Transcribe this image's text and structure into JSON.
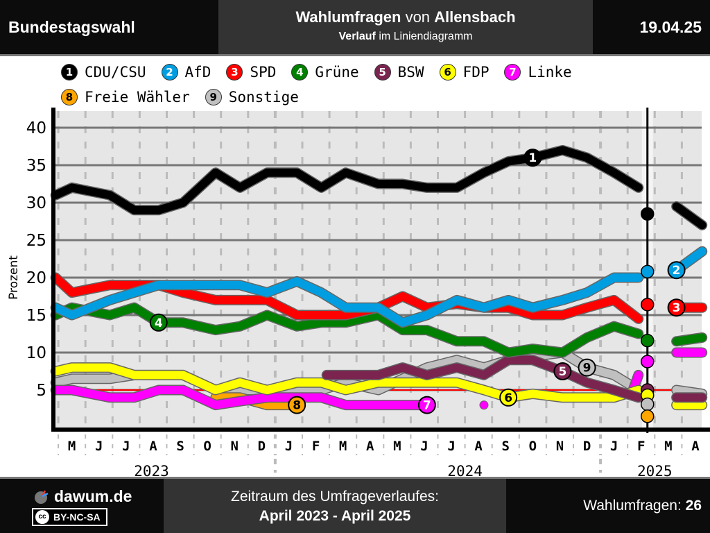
{
  "header": {
    "left": "Bundestagswahl",
    "title_bold1": "Wahlumfragen",
    "title_mid": " von ",
    "title_bold2": "Allensbach",
    "subtitle_bold": "Verlauf",
    "subtitle_rest": " im Liniendiagramm",
    "date": "19.04.25"
  },
  "footer": {
    "brand": "dawum.de",
    "license": "BY-NC-SA",
    "license_icon": "cc",
    "period_label": "Zeitraum des Umfrageverlaufes:",
    "period_value": "April 2023 - April 2025",
    "count_label": "Wahlumfragen: ",
    "count_value": "26"
  },
  "legend": [
    {
      "num": "1",
      "name": "CDU/CSU",
      "color": "#000000",
      "text": "#ffffff"
    },
    {
      "num": "2",
      "name": "AfD",
      "color": "#009ee0",
      "text": "#ffffff"
    },
    {
      "num": "3",
      "name": "SPD",
      "color": "#ff0000",
      "text": "#ffffff"
    },
    {
      "num": "4",
      "name": "Grüne",
      "color": "#008000",
      "text": "#ffffff"
    },
    {
      "num": "5",
      "name": "BSW",
      "color": "#7b2450",
      "text": "#ffffff"
    },
    {
      "num": "6",
      "name": "FDP",
      "color": "#ffff00",
      "text": "#000000"
    },
    {
      "num": "7",
      "name": "Linke",
      "color": "#ff00ff",
      "text": "#ffffff"
    },
    {
      "num": "8",
      "name": "Freie Wähler",
      "color": "#ffa500",
      "text": "#000000"
    },
    {
      "num": "9",
      "name": "Sonstige",
      "color": "#c0c0c0",
      "text": "#000000"
    }
  ],
  "chart_data": {
    "type": "line",
    "title": "Wahlumfragen von Allensbach",
    "ylabel": "Prozent",
    "xlabel": "",
    "ylim": [
      0,
      42
    ],
    "yticks": [
      5,
      10,
      15,
      20,
      25,
      30,
      35,
      40
    ],
    "threshold": 5,
    "election_marker": "2025-02-23",
    "x_unit": "months since 2023-04-01",
    "xlim": [
      0.9,
      24.85
    ],
    "month_labels": [
      "M",
      "J",
      "J",
      "A",
      "S",
      "O",
      "N",
      "D",
      "J",
      "F",
      "M",
      "A",
      "M",
      "J",
      "J",
      "A",
      "S",
      "O",
      "N",
      "D",
      "J",
      "F",
      "M",
      "A"
    ],
    "year_labels": [
      {
        "label": "2023",
        "center": 4.5
      },
      {
        "label": "2024",
        "center": 15.5
      },
      {
        "label": "2025",
        "center": 22.5
      }
    ],
    "election_results": [
      {
        "party": "CDU/CSU",
        "value": 28.5
      },
      {
        "party": "AfD",
        "value": 20.8
      },
      {
        "party": "SPD",
        "value": 16.4
      },
      {
        "party": "Grüne",
        "value": 11.6
      },
      {
        "party": "Linke",
        "value": 8.8
      },
      {
        "party": "BSW",
        "value": 5.0
      },
      {
        "party": "FDP",
        "value": 4.3
      },
      {
        "party": "Sonstige",
        "value": 3.1
      },
      {
        "party": "Freie Wähler",
        "value": 1.5
      }
    ],
    "series": [
      {
        "name": "CDU/CSU",
        "num": "1",
        "label_at": 18.5,
        "segments": [
          [
            [
              0.9,
              31
            ],
            [
              1.5,
              32
            ],
            [
              2.9,
              31
            ],
            [
              3.8,
              29
            ],
            [
              4.7,
              29
            ],
            [
              5.6,
              30
            ],
            [
              6.8,
              34
            ],
            [
              7.7,
              32
            ],
            [
              8.7,
              34
            ],
            [
              9.8,
              34
            ],
            [
              10.7,
              32
            ],
            [
              11.6,
              34
            ],
            [
              12.8,
              32.5
            ],
            [
              13.7,
              32.5
            ],
            [
              14.6,
              32
            ],
            [
              15.7,
              32
            ],
            [
              16.7,
              34
            ],
            [
              17.6,
              35.5
            ],
            [
              18.5,
              36
            ],
            [
              19.6,
              37
            ],
            [
              20.5,
              36
            ],
            [
              21.5,
              34
            ],
            [
              22.4,
              32
            ]
          ],
          [
            [
              23.8,
              29.5
            ],
            [
              24.75,
              27
            ]
          ]
        ]
      },
      {
        "name": "AfD",
        "num": "2",
        "label_at": 23.8,
        "segments": [
          [
            [
              0.9,
              16
            ],
            [
              1.5,
              15
            ],
            [
              2.9,
              17
            ],
            [
              3.8,
              18
            ],
            [
              4.7,
              19
            ],
            [
              5.6,
              19
            ],
            [
              6.8,
              19
            ],
            [
              7.7,
              19
            ],
            [
              8.7,
              18
            ],
            [
              9.8,
              19.5
            ],
            [
              10.7,
              18
            ],
            [
              11.6,
              16
            ],
            [
              12.8,
              16
            ],
            [
              13.7,
              14
            ],
            [
              14.6,
              15
            ],
            [
              15.7,
              17
            ],
            [
              16.7,
              16
            ],
            [
              17.6,
              17
            ],
            [
              18.5,
              16
            ],
            [
              19.6,
              17
            ],
            [
              20.5,
              18
            ],
            [
              21.5,
              20
            ],
            [
              22.4,
              20
            ]
          ],
          [
            [
              23.8,
              21
            ],
            [
              24.75,
              23.5
            ]
          ]
        ]
      },
      {
        "name": "SPD",
        "num": "3",
        "label_at": 23.8,
        "segments": [
          [
            [
              0.9,
              20
            ],
            [
              1.5,
              18
            ],
            [
              2.9,
              19
            ],
            [
              3.8,
              19
            ],
            [
              4.7,
              19
            ],
            [
              5.6,
              18
            ],
            [
              6.8,
              17
            ],
            [
              7.7,
              17
            ],
            [
              8.7,
              17
            ],
            [
              9.8,
              15
            ],
            [
              10.7,
              15
            ],
            [
              11.6,
              15
            ],
            [
              12.8,
              16
            ],
            [
              13.7,
              17.5
            ],
            [
              14.6,
              16
            ],
            [
              15.7,
              16.5
            ],
            [
              16.7,
              16
            ],
            [
              17.6,
              16
            ],
            [
              18.5,
              15
            ],
            [
              19.6,
              15
            ],
            [
              20.5,
              16
            ],
            [
              21.5,
              17
            ],
            [
              22.4,
              14.5
            ]
          ],
          [
            [
              23.8,
              16
            ],
            [
              24.75,
              16
            ]
          ]
        ]
      },
      {
        "name": "Grüne",
        "num": "4",
        "label_at": 4.7,
        "segments": [
          [
            [
              0.9,
              15
            ],
            [
              1.5,
              16
            ],
            [
              2.9,
              15
            ],
            [
              3.8,
              16
            ],
            [
              4.7,
              14
            ],
            [
              5.6,
              14
            ],
            [
              6.8,
              13
            ],
            [
              7.7,
              13.5
            ],
            [
              8.7,
              15
            ],
            [
              9.8,
              13.5
            ],
            [
              10.7,
              14
            ],
            [
              11.6,
              14
            ],
            [
              12.8,
              15
            ],
            [
              13.7,
              13
            ],
            [
              14.6,
              13
            ],
            [
              15.7,
              11.5
            ],
            [
              16.7,
              11.5
            ],
            [
              17.6,
              10
            ],
            [
              18.5,
              10.5
            ],
            [
              19.6,
              10
            ],
            [
              20.5,
              12
            ],
            [
              21.5,
              13.5
            ],
            [
              22.4,
              12.5
            ]
          ],
          [
            [
              23.8,
              11.5
            ],
            [
              24.75,
              12
            ]
          ]
        ]
      },
      {
        "name": "BSW",
        "num": "5",
        "label_at": 19.6,
        "segments": [
          [
            [
              10.9,
              7
            ],
            [
              11.6,
              7
            ],
            [
              12.8,
              7
            ],
            [
              13.7,
              8
            ],
            [
              14.6,
              7
            ],
            [
              15.7,
              8
            ],
            [
              16.7,
              7
            ],
            [
              17.6,
              9
            ],
            [
              18.5,
              9
            ],
            [
              19.6,
              7.5
            ],
            [
              20.5,
              6
            ],
            [
              21.5,
              5
            ],
            [
              22.4,
              4
            ]
          ],
          [
            [
              23.8,
              4
            ],
            [
              24.75,
              4
            ]
          ]
        ]
      },
      {
        "name": "FDP",
        "num": "6",
        "label_at": 17.6,
        "segments": [
          [
            [
              0.9,
              7.5
            ],
            [
              1.5,
              8
            ],
            [
              2.9,
              8
            ],
            [
              3.8,
              7
            ],
            [
              4.7,
              7
            ],
            [
              5.6,
              7
            ],
            [
              6.8,
              5
            ],
            [
              7.7,
              6
            ],
            [
              8.7,
              5
            ],
            [
              9.8,
              6
            ],
            [
              10.7,
              6
            ],
            [
              11.6,
              5
            ],
            [
              12.8,
              6
            ],
            [
              13.7,
              6
            ],
            [
              14.6,
              6
            ],
            [
              15.7,
              6
            ],
            [
              16.7,
              5
            ],
            [
              17.6,
              4
            ],
            [
              18.5,
              4.5
            ],
            [
              19.6,
              4
            ],
            [
              20.5,
              4
            ],
            [
              21.5,
              4
            ],
            [
              22.4,
              5
            ]
          ],
          [
            [
              23.8,
              3
            ],
            [
              24.75,
              3
            ]
          ]
        ]
      },
      {
        "name": "Linke",
        "num": "7",
        "label_at": 14.6,
        "segments": [
          [
            [
              0.9,
              5
            ],
            [
              1.5,
              5
            ],
            [
              2.9,
              4
            ],
            [
              3.8,
              4
            ],
            [
              4.7,
              5
            ],
            [
              5.6,
              5
            ],
            [
              6.8,
              3
            ],
            [
              7.7,
              3.5
            ],
            [
              8.7,
              4
            ],
            [
              9.8,
              4
            ],
            [
              10.7,
              4
            ],
            [
              11.6,
              3
            ],
            [
              12.8,
              3
            ],
            [
              13.7,
              3
            ],
            [
              14.6,
              3
            ]
          ],
          [
            [
              16.7,
              3
            ]
          ],
          [
            [
              22.2,
              5
            ],
            [
              22.4,
              7
            ]
          ],
          [
            [
              23.8,
              10
            ],
            [
              24.75,
              10
            ]
          ]
        ]
      },
      {
        "name": "Freie Wähler",
        "num": "8",
        "label_at": 9.8,
        "segments": [
          [
            [
              6.8,
              4
            ],
            [
              7.7,
              4
            ],
            [
              8.7,
              3
            ],
            [
              9.8,
              3
            ]
          ]
        ]
      },
      {
        "name": "Sonstige",
        "num": "9",
        "label_at": 20.5,
        "segments": [
          [
            [
              0.9,
              6
            ],
            [
              1.5,
              6.5
            ],
            [
              2.9,
              6.5
            ],
            [
              3.8,
              7
            ],
            [
              4.7,
              7
            ],
            [
              5.6,
              7
            ],
            [
              6.8,
              5
            ],
            [
              7.7,
              5
            ],
            [
              8.7,
              5
            ],
            [
              9.8,
              5
            ],
            [
              10.7,
              5
            ],
            [
              11.6,
              6
            ],
            [
              12.8,
              5
            ],
            [
              13.7,
              6.5
            ],
            [
              14.6,
              8
            ],
            [
              15.7,
              9
            ],
            [
              16.7,
              8
            ],
            [
              17.6,
              9
            ],
            [
              18.5,
              9.5
            ],
            [
              19.6,
              10
            ],
            [
              20.5,
              8
            ],
            [
              21.5,
              7
            ],
            [
              22.4,
              5
            ]
          ],
          [
            [
              23.8,
              5
            ],
            [
              24.75,
              4.5
            ]
          ]
        ]
      }
    ]
  }
}
